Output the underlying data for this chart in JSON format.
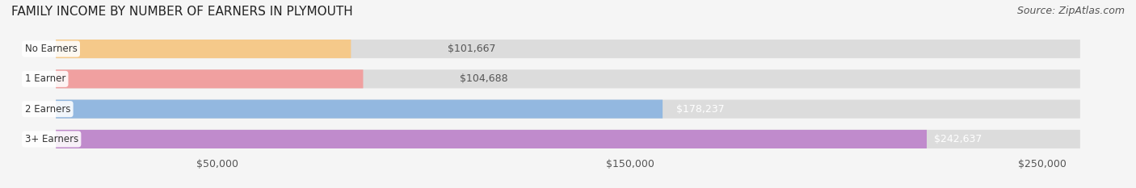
{
  "title": "FAMILY INCOME BY NUMBER OF EARNERS IN PLYMOUTH",
  "source": "Source: ZipAtlas.com",
  "categories": [
    "No Earners",
    "1 Earner",
    "2 Earners",
    "3+ Earners"
  ],
  "values": [
    101667,
    104688,
    178237,
    242637
  ],
  "labels": [
    "$101,667",
    "$104,688",
    "$178,237",
    "$242,637"
  ],
  "bar_colors": [
    "#f5c98a",
    "#f0a0a0",
    "#93b8e0",
    "#c08bcc"
  ],
  "bar_bg_color": "#dcdcdc",
  "label_inside_colors": [
    "#555555",
    "#555555",
    "#ffffff",
    "#ffffff"
  ],
  "xlim": [
    0,
    270000
  ],
  "xticks": [
    50000,
    150000,
    250000
  ],
  "xtick_labels": [
    "$50,000",
    "$150,000",
    "$250,000"
  ],
  "title_fontsize": 11,
  "source_fontsize": 9,
  "tick_fontsize": 9,
  "bar_label_fontsize": 9,
  "category_fontsize": 8.5,
  "background_color": "#f5f5f5"
}
